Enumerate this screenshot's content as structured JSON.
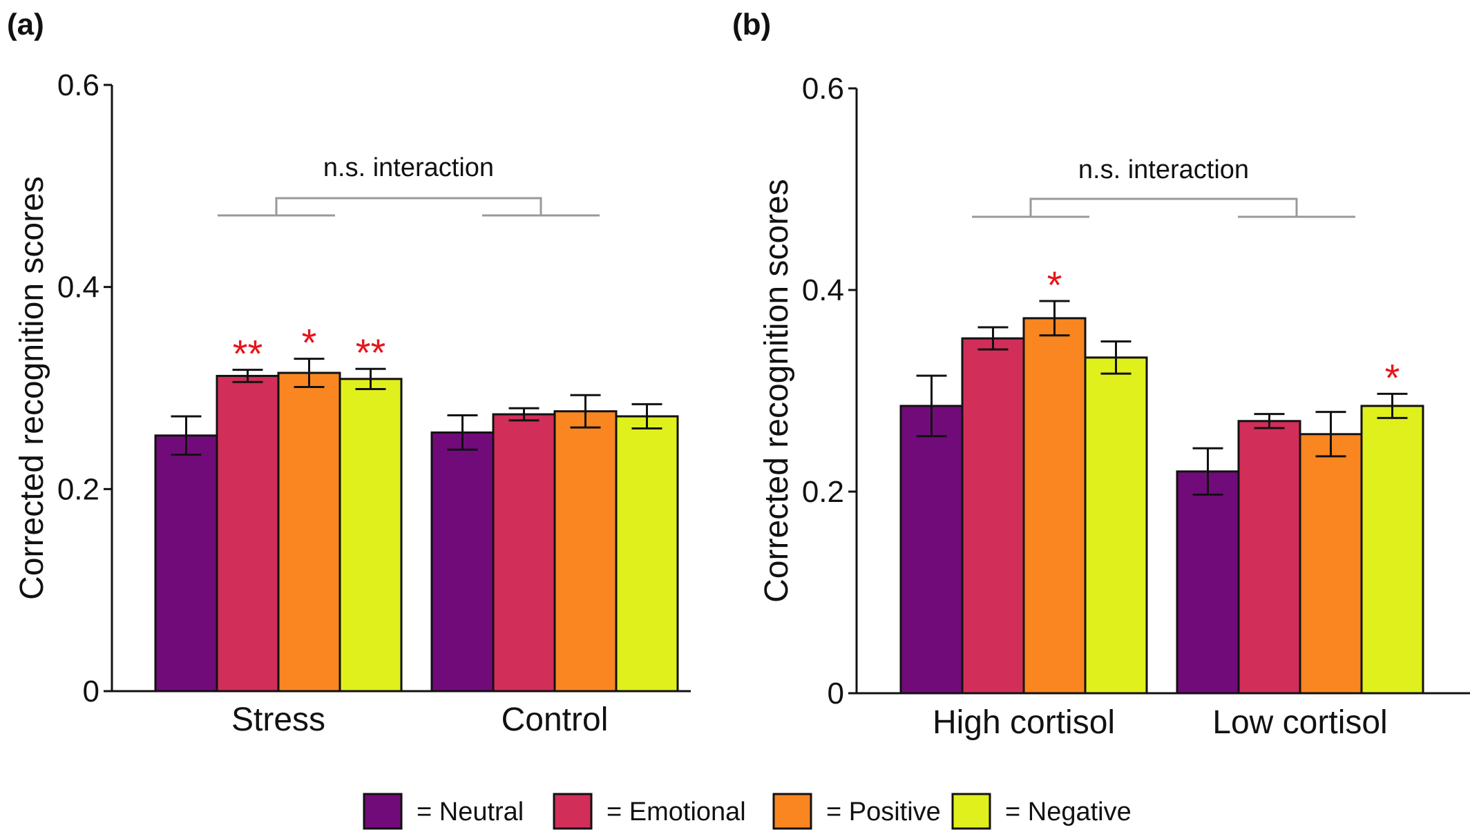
{
  "colors": {
    "Neutral": "#720b7a",
    "Emotional": "#d22e5a",
    "Positive": "#f98621",
    "Negative": "#e0f01c",
    "significance": "#e8141b",
    "bracket": "#999999"
  },
  "legend": {
    "entries": [
      {
        "key": "Neutral",
        "label": "= Neutral"
      },
      {
        "key": "Emotional",
        "label": "= Emotional"
      },
      {
        "key": "Positive",
        "label": "= Positive"
      },
      {
        "key": "Negative",
        "label": "= Negative"
      }
    ]
  },
  "chart_data": [
    {
      "type": "bar",
      "panel_label": "(a)",
      "ylabel": "Corrected recognition scores",
      "xlabel": "",
      "ylim": [
        0,
        0.6
      ],
      "yticks": [
        0,
        0.2,
        0.4,
        0.6
      ],
      "ytick_labels": [
        "0",
        "0.2",
        "0.4",
        "0.6"
      ],
      "categories": [
        "Stress",
        "Control"
      ],
      "series": [
        {
          "name": "Neutral",
          "values": [
            0.253,
            0.256
          ],
          "errors": [
            0.019,
            0.017
          ]
        },
        {
          "name": "Emotional",
          "values": [
            0.312,
            0.274
          ],
          "errors": [
            0.006,
            0.006
          ]
        },
        {
          "name": "Positive",
          "values": [
            0.315,
            0.277
          ],
          "errors": [
            0.014,
            0.016
          ]
        },
        {
          "name": "Negative",
          "values": [
            0.309,
            0.272
          ],
          "errors": [
            0.01,
            0.012
          ]
        }
      ],
      "significance": [
        {
          "category": "Stress",
          "series": "Emotional",
          "label": "**"
        },
        {
          "category": "Stress",
          "series": "Positive",
          "label": "*"
        },
        {
          "category": "Stress",
          "series": "Negative",
          "label": "**"
        }
      ],
      "interaction_annotation": "n.s. interaction"
    },
    {
      "type": "bar",
      "panel_label": "(b)",
      "ylabel": "Corrected recognition scores",
      "xlabel": "",
      "ylim": [
        0,
        0.6
      ],
      "yticks": [
        0,
        0.2,
        0.4,
        0.6
      ],
      "ytick_labels": [
        "0",
        "0.2",
        "0.4",
        "0.6"
      ],
      "categories": [
        "High cortisol",
        "Low cortisol"
      ],
      "series": [
        {
          "name": "Neutral",
          "values": [
            0.285,
            0.22
          ],
          "errors": [
            0.03,
            0.023
          ]
        },
        {
          "name": "Emotional",
          "values": [
            0.352,
            0.27
          ],
          "errors": [
            0.011,
            0.007
          ]
        },
        {
          "name": "Positive",
          "values": [
            0.372,
            0.257
          ],
          "errors": [
            0.017,
            0.022
          ]
        },
        {
          "name": "Negative",
          "values": [
            0.333,
            0.285
          ],
          "errors": [
            0.016,
            0.012
          ]
        }
      ],
      "significance": [
        {
          "category": "High cortisol",
          "series": "Positive",
          "label": "*"
        },
        {
          "category": "Low cortisol",
          "series": "Negative",
          "label": "*"
        }
      ],
      "interaction_annotation": "n.s. interaction"
    }
  ]
}
